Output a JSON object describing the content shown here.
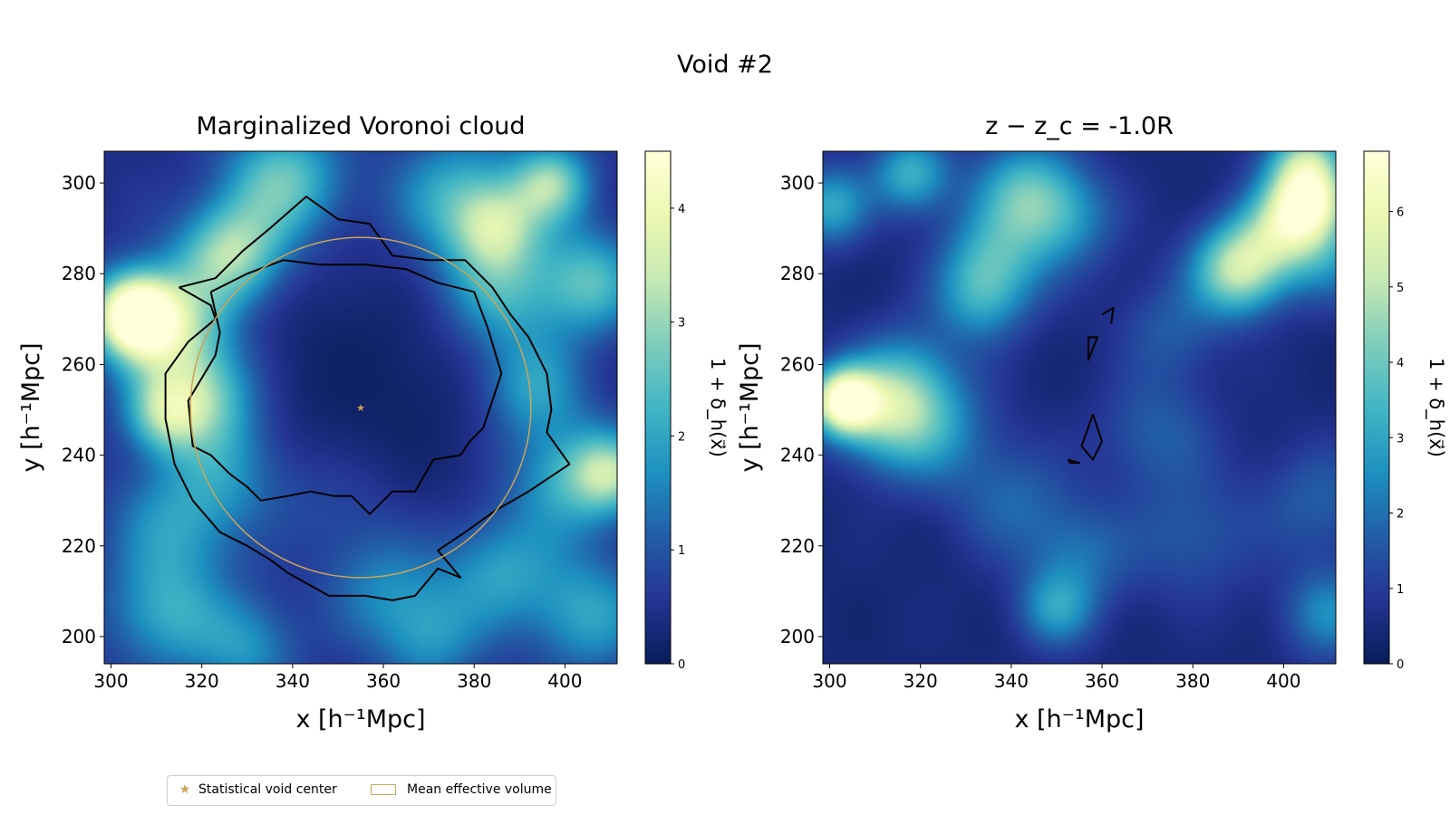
{
  "figure": {
    "suptitle": "Void #2"
  },
  "legend": {
    "items": [
      {
        "label": "Statistical void center",
        "color": "#c9a45c",
        "marker": "star"
      },
      {
        "label": "Mean effective volume",
        "color": "#c9a45c",
        "marker": "rect"
      }
    ]
  },
  "colormap": [
    "#081d58",
    "#253494",
    "#225ea8",
    "#1d91c0",
    "#41b6c4",
    "#7fcdbb",
    "#c7e9b4",
    "#edf8b1",
    "#ffffd9"
  ],
  "chart_data": [
    {
      "type": "heatmap",
      "title": "Marginalized Voronoi cloud",
      "xlabel": "x [h⁻¹Mpc]",
      "ylabel": "y [h⁻¹Mpc]",
      "xlim": [
        298.5,
        411.5
      ],
      "ylim": [
        194,
        307
      ],
      "xticks": [
        300,
        320,
        340,
        360,
        380,
        400
      ],
      "yticks": [
        200,
        220,
        240,
        260,
        280,
        300
      ],
      "colorbar": {
        "label": "1 + δ_h(x⃗)",
        "range": [
          0,
          4.5
        ],
        "ticks": [
          0,
          1,
          2,
          3,
          4
        ]
      },
      "void_center": [
        355,
        250.5
      ],
      "mean_effective_circle": {
        "center": [
          355,
          250.5
        ],
        "radius": 37.5
      },
      "density_features": [
        {
          "x": 305,
          "y": 271,
          "value": 4.2,
          "sigma": 6
        },
        {
          "x": 313,
          "y": 268,
          "value": 3.2,
          "sigma": 9
        },
        {
          "x": 327,
          "y": 284,
          "value": 3.0,
          "sigma": 8
        },
        {
          "x": 322,
          "y": 253,
          "value": 2.8,
          "sigma": 8
        },
        {
          "x": 312,
          "y": 249,
          "value": 2.4,
          "sigma": 6
        },
        {
          "x": 338,
          "y": 300,
          "value": 2.3,
          "sigma": 9
        },
        {
          "x": 385,
          "y": 275,
          "value": 2.0,
          "sigma": 9
        },
        {
          "x": 376,
          "y": 296,
          "value": 1.8,
          "sigma": 10
        },
        {
          "x": 385,
          "y": 290,
          "value": 2.2,
          "sigma": 7
        },
        {
          "x": 397,
          "y": 300,
          "value": 2.4,
          "sigma": 6
        },
        {
          "x": 405,
          "y": 278,
          "value": 2.0,
          "sigma": 8
        },
        {
          "x": 392,
          "y": 255,
          "value": 1.8,
          "sigma": 8
        },
        {
          "x": 400,
          "y": 235,
          "value": 1.8,
          "sigma": 9
        },
        {
          "x": 410,
          "y": 236,
          "value": 2.2,
          "sigma": 6
        },
        {
          "x": 327,
          "y": 238,
          "value": 1.6,
          "sigma": 9
        },
        {
          "x": 315,
          "y": 225,
          "value": 1.5,
          "sigma": 10
        },
        {
          "x": 312,
          "y": 205,
          "value": 1.5,
          "sigma": 9
        },
        {
          "x": 330,
          "y": 198,
          "value": 1.3,
          "sigma": 8
        },
        {
          "x": 360,
          "y": 212,
          "value": 1.3,
          "sigma": 9
        },
        {
          "x": 385,
          "y": 215,
          "value": 1.6,
          "sigma": 9
        },
        {
          "x": 370,
          "y": 200,
          "value": 1.3,
          "sigma": 8
        },
        {
          "x": 405,
          "y": 205,
          "value": 1.5,
          "sigma": 9
        },
        {
          "x": 350,
          "y": 232,
          "value": 1.0,
          "sigma": 10
        }
      ],
      "contours": [
        [
          [
            315,
            277
          ],
          [
            323,
            279
          ],
          [
            329,
            285
          ],
          [
            335,
            290
          ],
          [
            343,
            297
          ],
          [
            350,
            292
          ],
          [
            357,
            291
          ],
          [
            362,
            284
          ],
          [
            370,
            283
          ],
          [
            378,
            283
          ],
          [
            384,
            277
          ],
          [
            388,
            271
          ],
          [
            392,
            266
          ],
          [
            396,
            258
          ],
          [
            397,
            250
          ],
          [
            396,
            245
          ],
          [
            401,
            238
          ],
          [
            392,
            232
          ],
          [
            385,
            228
          ],
          [
            378,
            223
          ],
          [
            372,
            219
          ],
          [
            377,
            213
          ],
          [
            372,
            215
          ],
          [
            367,
            209
          ],
          [
            362,
            208
          ],
          [
            356,
            209
          ],
          [
            348,
            209
          ],
          [
            339,
            214
          ],
          [
            335,
            217
          ],
          [
            330,
            220
          ],
          [
            324,
            223
          ],
          [
            318,
            230
          ],
          [
            314,
            238
          ],
          [
            312,
            248
          ],
          [
            312,
            258
          ],
          [
            317,
            265
          ],
          [
            323,
            270
          ],
          [
            322,
            273
          ],
          [
            315,
            277
          ]
        ],
        [
          [
            322,
            276
          ],
          [
            330,
            280
          ],
          [
            338,
            283
          ],
          [
            346,
            282
          ],
          [
            356,
            282
          ],
          [
            365,
            281
          ],
          [
            372,
            278
          ],
          [
            380,
            276
          ],
          [
            383,
            268
          ],
          [
            386,
            258
          ],
          [
            384,
            252
          ],
          [
            382,
            246
          ],
          [
            379,
            243
          ],
          [
            377,
            240
          ],
          [
            371,
            239
          ],
          [
            367,
            232
          ],
          [
            362,
            232
          ],
          [
            357,
            227
          ],
          [
            353,
            231
          ],
          [
            349,
            231
          ],
          [
            344,
            232
          ],
          [
            339,
            231
          ],
          [
            333,
            230
          ],
          [
            330,
            233
          ],
          [
            326,
            236
          ],
          [
            322,
            240
          ],
          [
            318,
            242
          ],
          [
            317,
            252
          ],
          [
            323,
            262
          ],
          [
            324,
            267
          ],
          [
            322,
            276
          ]
        ]
      ]
    },
    {
      "type": "heatmap",
      "title": "z − z_c = -1.0R",
      "xlabel": "x [h⁻¹Mpc]",
      "ylabel": "y [h⁻¹Mpc]",
      "xlim": [
        298.5,
        411.5
      ],
      "ylim": [
        194,
        307
      ],
      "xticks": [
        300,
        320,
        340,
        360,
        380,
        400
      ],
      "yticks": [
        200,
        220,
        240,
        260,
        280,
        300
      ],
      "colorbar": {
        "label": "1 + δ_h(x⃗)",
        "range": [
          0,
          6.8
        ],
        "ticks": [
          0,
          1,
          2,
          3,
          4,
          5,
          6
        ]
      },
      "density_features": [
        {
          "x": 303,
          "y": 252,
          "value": 6.0,
          "sigma": 5
        },
        {
          "x": 312,
          "y": 250,
          "value": 3.0,
          "sigma": 8
        },
        {
          "x": 322,
          "y": 246,
          "value": 2.0,
          "sigma": 9
        },
        {
          "x": 300,
          "y": 295,
          "value": 2.6,
          "sigma": 6
        },
        {
          "x": 318,
          "y": 302,
          "value": 2.8,
          "sigma": 6
        },
        {
          "x": 343,
          "y": 298,
          "value": 2.8,
          "sigma": 8
        },
        {
          "x": 336,
          "y": 283,
          "value": 2.4,
          "sigma": 8
        },
        {
          "x": 333,
          "y": 274,
          "value": 1.8,
          "sigma": 7
        },
        {
          "x": 352,
          "y": 292,
          "value": 1.8,
          "sigma": 8
        },
        {
          "x": 390,
          "y": 281,
          "value": 4.5,
          "sigma": 7
        },
        {
          "x": 400,
          "y": 290,
          "value": 3.5,
          "sigma": 7
        },
        {
          "x": 406,
          "y": 296,
          "value": 4.5,
          "sigma": 6
        },
        {
          "x": 405,
          "y": 305,
          "value": 3.5,
          "sigma": 6
        },
        {
          "x": 410,
          "y": 283,
          "value": 1.6,
          "sigma": 7
        },
        {
          "x": 317,
          "y": 258,
          "value": 1.4,
          "sigma": 8
        },
        {
          "x": 340,
          "y": 230,
          "value": 1.3,
          "sigma": 9
        },
        {
          "x": 355,
          "y": 218,
          "value": 1.4,
          "sigma": 8
        },
        {
          "x": 350,
          "y": 206,
          "value": 2.2,
          "sigma": 6
        },
        {
          "x": 372,
          "y": 245,
          "value": 1.2,
          "sigma": 9
        },
        {
          "x": 380,
          "y": 222,
          "value": 1.1,
          "sigma": 10
        },
        {
          "x": 410,
          "y": 205,
          "value": 2.0,
          "sigma": 7
        },
        {
          "x": 408,
          "y": 230,
          "value": 1.2,
          "sigma": 9
        },
        {
          "x": 375,
          "y": 268,
          "value": 1.1,
          "sigma": 8
        }
      ],
      "contours": [
        [
          [
            360,
            271
          ],
          [
            362.5,
            272.5
          ],
          [
            362,
            269
          ]
        ],
        [
          [
            357,
            266
          ],
          [
            359,
            266
          ],
          [
            357,
            261
          ],
          [
            357,
            266
          ]
        ],
        [
          [
            358,
            249
          ],
          [
            360,
            243
          ],
          [
            358,
            239
          ],
          [
            355.5,
            242
          ],
          [
            358,
            249
          ]
        ],
        [
          [
            352.5,
            239
          ],
          [
            355,
            238.3
          ],
          [
            353,
            238.3
          ],
          [
            352.5,
            239
          ]
        ]
      ]
    }
  ]
}
